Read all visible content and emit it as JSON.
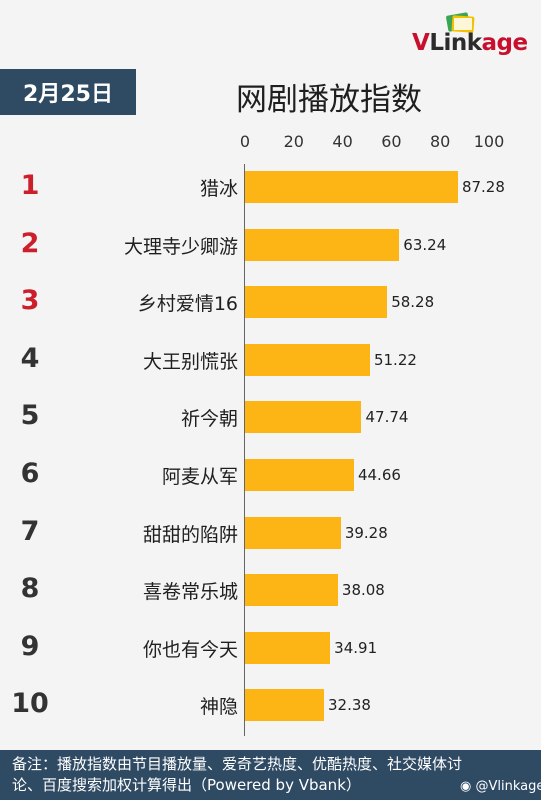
{
  "brand": {
    "logo_text": "VLinkage",
    "logo_mark": "V",
    "logo_rest": "Link",
    "logo_tail": "age"
  },
  "date": "2月25日",
  "chart_data": {
    "type": "bar",
    "orientation": "horizontal",
    "title": "网剧播放指数",
    "xlim": [
      0,
      100
    ],
    "ticks": [
      "0",
      "20",
      "40",
      "60",
      "80",
      "100"
    ],
    "tick_values": [
      0,
      20,
      40,
      60,
      80,
      100
    ],
    "ranks": [
      "1",
      "2",
      "3",
      "4",
      "5",
      "6",
      "7",
      "8",
      "9",
      "10"
    ],
    "categories": [
      "猎冰",
      "大理寺少卿游",
      "乡村爱情16",
      "大王别慌张",
      "祈今朝",
      "阿麦从军",
      "甜甜的陷阱",
      "喜卷常乐城",
      "你也有今天",
      "神隐"
    ],
    "values": [
      87.28,
      63.24,
      58.28,
      51.22,
      47.74,
      44.66,
      39.28,
      38.08,
      34.91,
      32.38
    ],
    "value_labels": [
      "87.28",
      "63.24",
      "58.28",
      "51.22",
      "47.74",
      "44.66",
      "39.28",
      "38.08",
      "34.91",
      "32.38"
    ],
    "bar_color": "#fdb515",
    "top_rank_color": "#cc1f2b",
    "grid": false
  },
  "footer": {
    "line1": "备注：播放指数由节目播放量、爱奇艺热度、优酷热度、社交媒体讨",
    "line2": "论、百度搜索加权计算得出（Powered by Vbank）"
  },
  "watermark": "@Vlinkage",
  "colors": {
    "header_bg": "#2f4a63",
    "brand_red": "#c8102e",
    "background": "#f4f4f4"
  }
}
